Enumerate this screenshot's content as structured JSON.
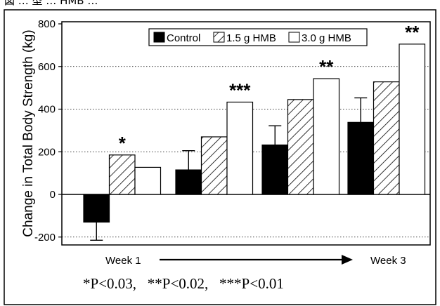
{
  "figure": {
    "header_text": "図 … 型 … HMB …",
    "footnote": "*P<0.03,   **P<0.02,   ***P<0.01"
  },
  "chart_data": {
    "type": "bar",
    "ylabel": "Change in Total Body Strength (kg)",
    "xlabel": "",
    "ylim": [
      -250,
      800
    ],
    "yticks": [
      -200,
      0,
      200,
      400,
      600,
      800
    ],
    "grid": true,
    "legend_position": "top-right",
    "categories": [
      "",
      "",
      "",
      ""
    ],
    "axis_arrow": {
      "start_label": "Week 1",
      "end_label": "Week 3"
    },
    "series": [
      {
        "name": "Control",
        "fill": "solid",
        "color": "#000000",
        "values": [
          -130,
          115,
          232,
          338
        ],
        "error_bars": [
          85,
          90,
          90,
          115
        ]
      },
      {
        "name": "1.5 g HMB",
        "fill": "hatch",
        "color": "#000000",
        "values": [
          185,
          270,
          445,
          528
        ]
      },
      {
        "name": "3.0 g HMB",
        "fill": "open",
        "color": "#ffffff",
        "values": [
          127,
          433,
          543,
          705
        ],
        "annotations": [
          "",
          "***",
          "**",
          "**"
        ]
      }
    ],
    "significance": [
      {
        "category_index": 0,
        "series_index": 1,
        "label": "*"
      },
      {
        "category_index": 1,
        "series_index": 2,
        "label": "***"
      },
      {
        "category_index": 2,
        "series_index": 2,
        "label": "**"
      },
      {
        "category_index": 3,
        "series_index": 2,
        "label": "**"
      }
    ]
  }
}
